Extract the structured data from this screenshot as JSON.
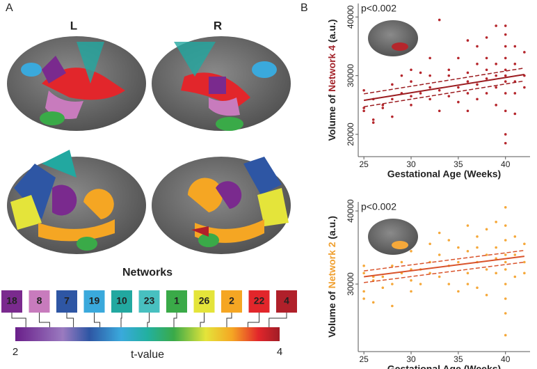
{
  "panels": {
    "a": "A",
    "b": "B"
  },
  "hemispheres": {
    "left": "L",
    "right": "R"
  },
  "networks_title": "Networks",
  "networks": [
    {
      "label": "18",
      "color": "#7a2a8e"
    },
    {
      "label": "8",
      "color": "#c87bbd"
    },
    {
      "label": "7",
      "color": "#2e56a4"
    },
    {
      "label": "19",
      "color": "#3aa9dc"
    },
    {
      "label": "10",
      "color": "#22a8a0"
    },
    {
      "label": "23",
      "color": "#48c0c0"
    },
    {
      "label": "1",
      "color": "#3aaa48"
    },
    {
      "label": "26",
      "color": "#e4e43a"
    },
    {
      "label": "2",
      "color": "#f5a623"
    },
    {
      "label": "22",
      "color": "#e2262b"
    },
    {
      "label": "4",
      "color": "#b0202a"
    }
  ],
  "colorbar": {
    "min": "2",
    "max": "4",
    "label": "t-value"
  },
  "chart_data": [
    {
      "type": "scatter",
      "annotation": "p<0.002",
      "y_label": [
        "Volume of ",
        "Network 4",
        " (a.u.)"
      ],
      "y_label_highlight": "#a3242b",
      "x_label": "Gestational Age (Weeks)",
      "color": "#b5262c",
      "x": [
        25,
        25,
        25,
        26,
        26,
        26,
        27,
        27,
        28,
        28,
        28,
        29,
        29,
        30,
        30,
        30,
        30,
        31,
        31,
        32,
        32,
        32,
        32,
        33,
        33,
        33,
        34,
        34,
        34,
        35,
        35,
        35,
        36,
        36,
        36,
        36,
        36,
        37,
        37,
        37,
        37,
        38,
        38,
        38,
        38,
        38,
        39,
        39,
        39,
        39,
        39,
        40,
        40,
        40,
        40,
        40,
        40,
        40,
        40,
        40,
        40,
        40,
        41,
        41,
        41,
        41,
        41,
        42,
        42,
        42
      ],
      "values": [
        24000,
        27500,
        24500,
        22500,
        22000,
        26000,
        24500,
        25000,
        26000,
        28500,
        23000,
        27000,
        30000,
        26500,
        29000,
        31000,
        25000,
        27000,
        30500,
        28000,
        26000,
        33000,
        30000,
        39500,
        27500,
        24000,
        30000,
        26500,
        31000,
        28000,
        33000,
        25500,
        27000,
        30500,
        36000,
        24000,
        29000,
        28500,
        32000,
        26000,
        35000,
        29500,
        31000,
        27000,
        36500,
        33000,
        30000,
        28000,
        38500,
        25000,
        32000,
        18500,
        20000,
        24000,
        27000,
        29000,
        31000,
        33000,
        35000,
        37000,
        38500,
        30000,
        29000,
        32000,
        27000,
        35000,
        23500,
        30000,
        28000,
        34000
      ],
      "fit": {
        "x": [
          25,
          42
        ],
        "values": [
          25800,
          30200
        ],
        "lower": [
          24700,
          29100
        ],
        "upper": [
          26900,
          31300
        ]
      },
      "fit_color": "#9b1c20",
      "xlim": [
        24.4,
        42.6
      ],
      "ylim": [
        16200,
        42300
      ],
      "xticks": [
        25,
        30,
        35,
        40
      ],
      "yticks": [
        20000,
        30000,
        40000
      ]
    },
    {
      "type": "scatter",
      "annotation": "p<0.002",
      "y_label": [
        "Volume of ",
        "Network 2",
        " (a.u.)"
      ],
      "y_label_highlight": "#f0a030",
      "x_label": "Gestational Age (Weeks)",
      "color": "#f5a83a",
      "x": [
        25,
        25,
        25,
        25,
        26,
        26,
        26,
        27,
        27,
        28,
        28,
        28,
        29,
        29,
        30,
        30,
        30,
        30,
        31,
        31,
        32,
        32,
        32,
        33,
        33,
        33,
        34,
        34,
        34,
        35,
        35,
        35,
        36,
        36,
        36,
        36,
        37,
        37,
        37,
        37,
        38,
        38,
        38,
        38,
        39,
        39,
        39,
        39,
        40,
        40,
        40,
        40,
        40,
        40,
        40,
        40,
        40,
        40,
        41,
        41,
        41,
        42,
        42,
        42
      ],
      "values": [
        28000,
        29000,
        31500,
        32500,
        27500,
        31000,
        30500,
        31000,
        29500,
        27000,
        32500,
        30000,
        31500,
        33000,
        30500,
        29000,
        34500,
        32000,
        32000,
        30000,
        33000,
        31500,
        35500,
        34000,
        31000,
        37000,
        32500,
        36000,
        30000,
        33000,
        29000,
        35000,
        34500,
        31500,
        38000,
        30000,
        33000,
        36500,
        29500,
        35000,
        32000,
        37500,
        34000,
        28500,
        35000,
        31500,
        38500,
        33500,
        23000,
        26000,
        28000,
        30000,
        32000,
        34000,
        36000,
        38000,
        40500,
        33000,
        34000,
        31000,
        36500,
        33000,
        35500,
        31500
      ],
      "fit": {
        "x": [
          25,
          42
        ],
        "values": [
          31000,
          33800
        ],
        "lower": [
          30200,
          33000
        ],
        "upper": [
          31800,
          34600
        ]
      },
      "fit_color": "#d9532b",
      "xlim": [
        24.4,
        42.6
      ],
      "ylim": [
        20760,
        41240
      ],
      "xticks": [
        25,
        30,
        35,
        40
      ],
      "yticks": [
        30000,
        40000
      ]
    }
  ]
}
